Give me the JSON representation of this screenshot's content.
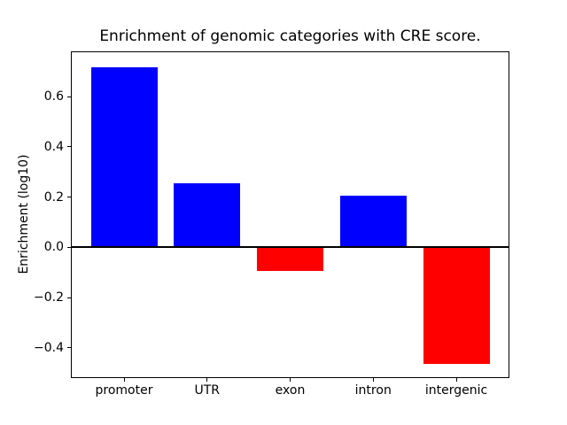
{
  "title": "Enrichment of genomic categories with CRE score.",
  "chart_data": {
    "type": "bar",
    "title": "Enrichment of genomic categories with CRE score.",
    "xlabel": "",
    "ylabel": "Enrichment (log10)",
    "categories": [
      "promoter",
      "UTR",
      "exon",
      "intron",
      "intergenic"
    ],
    "values": [
      0.718,
      0.255,
      -0.092,
      0.204,
      -0.464
    ],
    "bar_colors": [
      "#0000ff",
      "#0000ff",
      "#ff0000",
      "#0000ff",
      "#ff0000"
    ],
    "positive_color": "#0000ff",
    "negative_color": "#ff0000",
    "ylim": [
      -0.52,
      0.78
    ],
    "xlim": [
      -0.64,
      4.64
    ],
    "bar_width_fraction": 0.8,
    "yticks": [
      0.6,
      0.4,
      0.2,
      0.0,
      -0.2,
      -0.4
    ],
    "ytick_labels": [
      "0.6",
      "0.4",
      "0.2",
      "0.0",
      "−0.2",
      "−0.4"
    ],
    "zero_line": true,
    "grid": false,
    "legend": null,
    "background_color": "#ffffff",
    "axis_color": "#000000"
  }
}
